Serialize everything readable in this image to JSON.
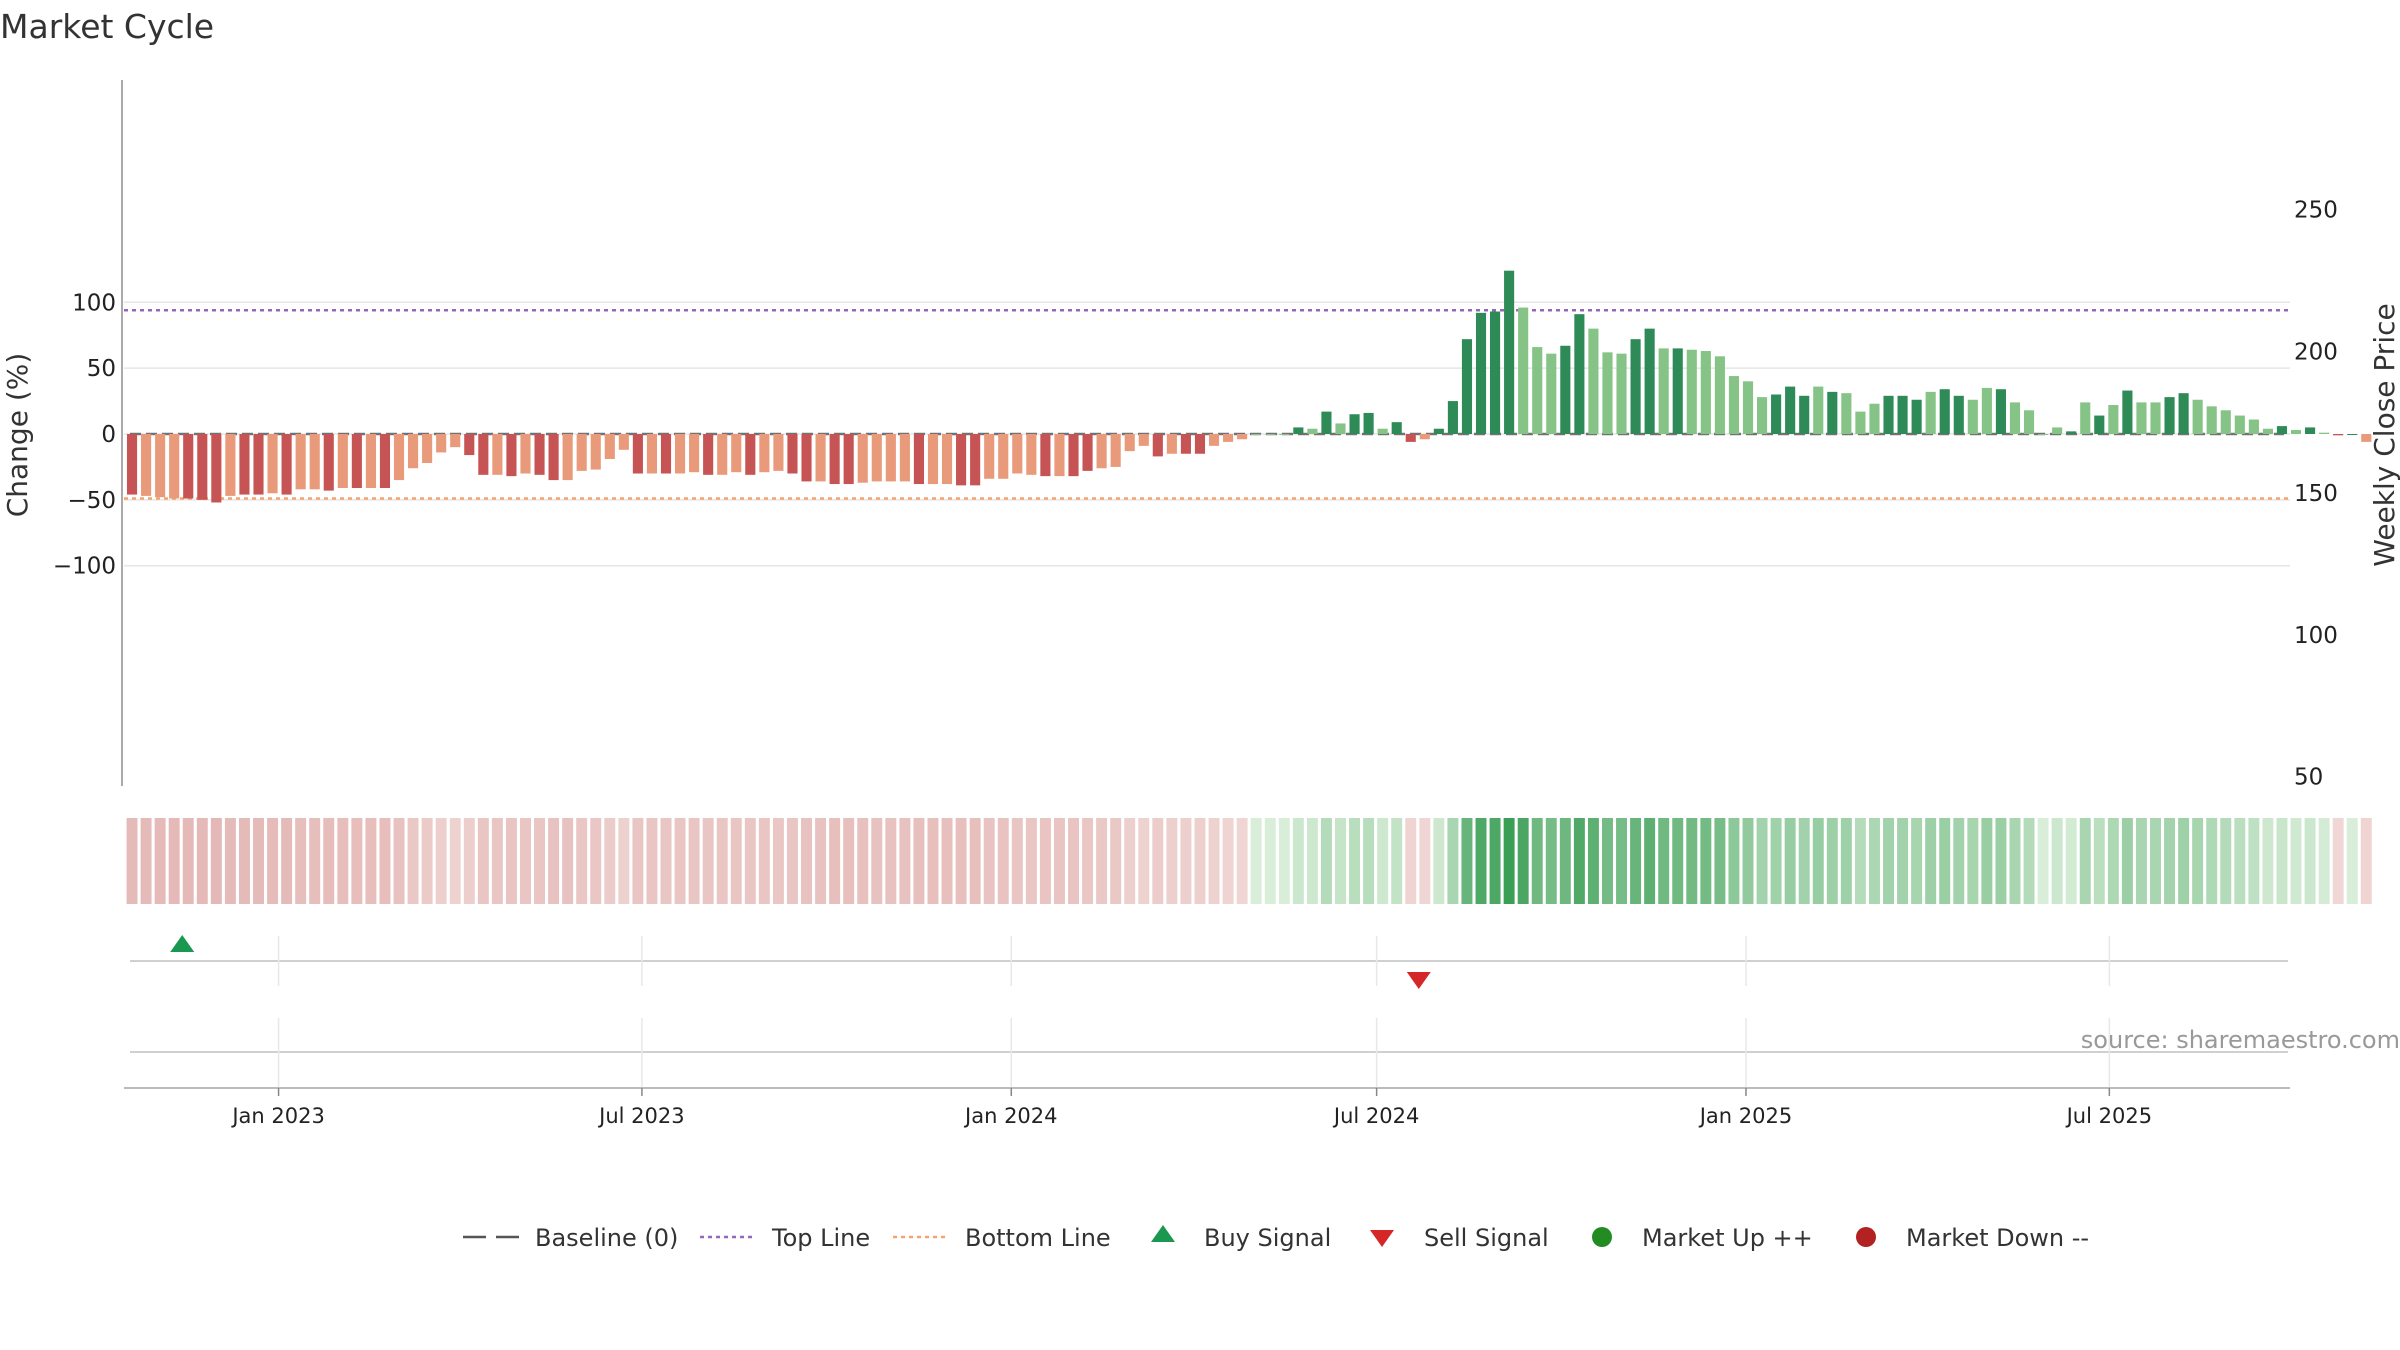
{
  "chart_data": {
    "type": "bar",
    "title": "Market Cycle",
    "ylabel": "Change (%)",
    "y2label": "Weekly Close Price",
    "ylim": [
      -134,
      134
    ],
    "y2lim": [
      43,
      290
    ],
    "yticks": [
      -100,
      -50,
      0,
      50,
      100
    ],
    "y2ticks": [
      50,
      100,
      150,
      200,
      250
    ],
    "ytick_labels": [
      "−100",
      "−50",
      "0",
      "50",
      "100"
    ],
    "y2tick_labels": [
      "50",
      "100",
      "150",
      "200",
      "250"
    ],
    "xlim": [
      "2022-10-16",
      "2025-09-29"
    ],
    "xticks": [
      "2023-01-01",
      "2023-07-01",
      "2024-01-01",
      "2024-07-01",
      "2025-01-01",
      "2025-07-01"
    ],
    "xtick_labels": [
      "Jan 2023",
      "Jul 2023",
      "Jan 2024",
      "Jul 2024",
      "Jan 2025",
      "Jul 2025"
    ],
    "start_date": "2022-10-20",
    "top_line": 94,
    "bottom_line": -49,
    "baseline": 0,
    "values": [
      -46,
      -47,
      -48,
      -49,
      -49,
      -50,
      -52,
      -47,
      -46,
      -46,
      -45,
      -46,
      -42,
      -42,
      -43,
      -41,
      -41,
      -41,
      -41,
      -35,
      -26,
      -22,
      -14,
      -10,
      -16,
      -31,
      -31,
      -32,
      -30,
      -31,
      -35,
      -35,
      -28,
      -27,
      -19,
      -12,
      -30,
      -30,
      -30,
      -30,
      -29,
      -31,
      -31,
      -29,
      -31,
      -29,
      -28,
      -30,
      -36,
      -36,
      -38,
      -38,
      -37,
      -36,
      -36,
      -36,
      -38,
      -38,
      -38,
      -39,
      -39,
      -34,
      -34,
      -30,
      -31,
      -32,
      -32,
      -32,
      -28,
      -26,
      -25,
      -13,
      -9,
      -17,
      -15,
      -15,
      -15,
      -9,
      -6,
      -4,
      0,
      0,
      0,
      5,
      4,
      17,
      8,
      15,
      16,
      4,
      9,
      -6,
      -4,
      4,
      25,
      72,
      92,
      93,
      124,
      96,
      66,
      61,
      67,
      91,
      80,
      62,
      61,
      72,
      80,
      65,
      65,
      64,
      63,
      59,
      44,
      40,
      28,
      30,
      36,
      29,
      36,
      32,
      31,
      17,
      23,
      29,
      29,
      26,
      32,
      34,
      29,
      26,
      35,
      34,
      24,
      18,
      0,
      5,
      2,
      24,
      14,
      22,
      33,
      24,
      24,
      28,
      31,
      26,
      21,
      18,
      14,
      11,
      4,
      6,
      3,
      5,
      1,
      -1,
      0,
      -6
    ],
    "shades": [
      "d",
      "m",
      "m",
      "m",
      "d",
      "d",
      "d",
      "m",
      "d",
      "d",
      "m",
      "d",
      "m",
      "m",
      "d",
      "m",
      "d",
      "m",
      "d",
      "m",
      "m",
      "m",
      "m",
      "m",
      "d",
      "d",
      "m",
      "d",
      "m",
      "d",
      "d",
      "m",
      "m",
      "m",
      "m",
      "m",
      "d",
      "m",
      "d",
      "m",
      "m",
      "d",
      "m",
      "m",
      "d",
      "m",
      "m",
      "d",
      "d",
      "m",
      "d",
      "d",
      "m",
      "m",
      "m",
      "m",
      "d",
      "m",
      "m",
      "d",
      "d",
      "m",
      "m",
      "m",
      "m",
      "d",
      "m",
      "d",
      "d",
      "m",
      "m",
      "m",
      "m",
      "d",
      "m",
      "d",
      "d",
      "m",
      "m",
      "m",
      "m",
      "m",
      "m",
      "d",
      "m",
      "d",
      "m",
      "d",
      "d",
      "m",
      "d",
      "d",
      "m",
      "d",
      "d",
      "d",
      "d",
      "d",
      "d",
      "m",
      "m",
      "m",
      "d",
      "d",
      "m",
      "m",
      "m",
      "d",
      "d",
      "m",
      "d",
      "m",
      "m",
      "m",
      "m",
      "m",
      "m",
      "d",
      "d",
      "d",
      "m",
      "d",
      "m",
      "m",
      "m",
      "d",
      "d",
      "d",
      "m",
      "d",
      "d",
      "m",
      "m",
      "d",
      "m",
      "m",
      "m",
      "m",
      "d",
      "m",
      "d",
      "m",
      "d",
      "m",
      "m",
      "d",
      "d",
      "m",
      "m",
      "m",
      "m",
      "m",
      "m",
      "d",
      "m",
      "d",
      "m",
      "d",
      "d"
    ],
    "buy_signals": [
      "2022-11-14"
    ],
    "sell_signals": [
      "2024-07-22"
    ],
    "source": "source: sharemaestro.com",
    "legend": {
      "placement": "bottom-center",
      "baseline": "Baseline (0)",
      "top": "Top Line",
      "bottom": "Bottom Line",
      "buy": "Buy Signal",
      "sell": "Sell Signal",
      "up": "Market Up ++",
      "down": "Market Down --"
    },
    "colors": {
      "pos_dark": "#2e8b57",
      "pos_light": "#86c386",
      "neg_dark": "#c75454",
      "neg_light": "#e89a7a",
      "top_line": "#9467bd",
      "bottom_line": "#f4a46a",
      "buy": "#1a9850",
      "sell": "#d62728",
      "up": "#228b22",
      "down": "#b22222",
      "baseline": "#555555"
    },
    "grid": true
  }
}
